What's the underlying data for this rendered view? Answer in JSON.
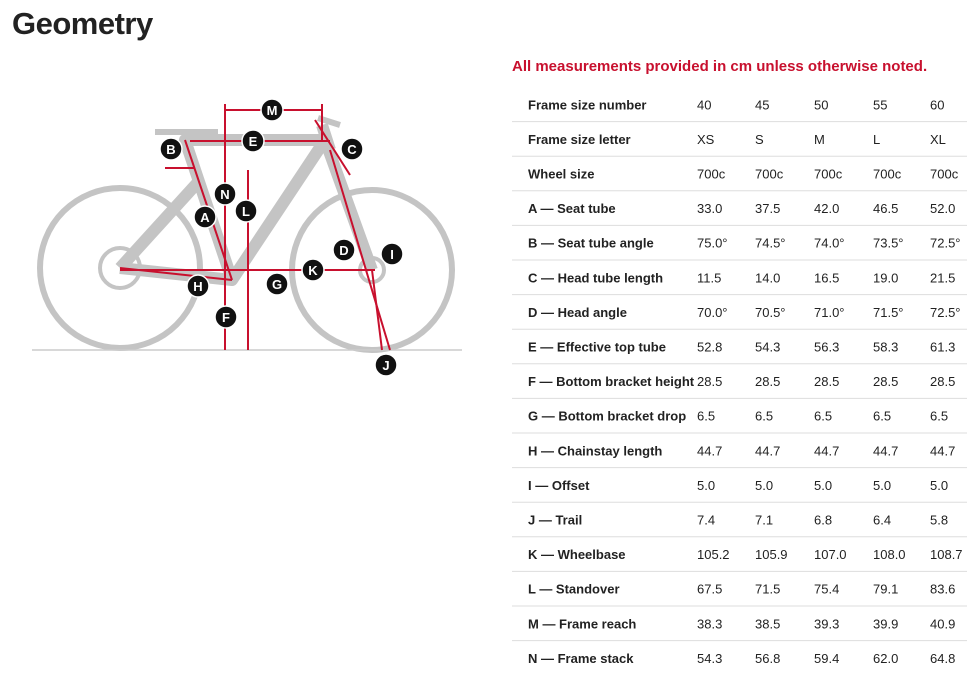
{
  "header": {
    "title": "Geometry",
    "note": "All measurements provided in cm unless otherwise noted."
  },
  "diagram": {
    "labels": [
      "M",
      "E",
      "B",
      "C",
      "N",
      "A",
      "L",
      "D",
      "I",
      "K",
      "H",
      "G",
      "F",
      "J"
    ]
  },
  "table": {
    "rows": [
      [
        "Frame size number",
        "40",
        "45",
        "50",
        "55",
        "60"
      ],
      [
        "Frame size letter",
        "XS",
        "S",
        "M",
        "L",
        "XL"
      ],
      [
        "Wheel size",
        "700c",
        "700c",
        "700c",
        "700c",
        "700c"
      ],
      [
        "A — Seat tube",
        "33.0",
        "37.5",
        "42.0",
        "46.5",
        "52.0"
      ],
      [
        "B — Seat tube angle",
        "75.0°",
        "74.5°",
        "74.0°",
        "73.5°",
        "72.5°"
      ],
      [
        "C — Head tube length",
        "11.5",
        "14.0",
        "16.5",
        "19.0",
        "21.5"
      ],
      [
        "D — Head angle",
        "70.0°",
        "70.5°",
        "71.0°",
        "71.5°",
        "72.5°"
      ],
      [
        "E — Effective top tube",
        "52.8",
        "54.3",
        "56.3",
        "58.3",
        "61.3"
      ],
      [
        "F — Bottom bracket height",
        "28.5",
        "28.5",
        "28.5",
        "28.5",
        "28.5"
      ],
      [
        "G — Bottom bracket drop",
        "6.5",
        "6.5",
        "6.5",
        "6.5",
        "6.5"
      ],
      [
        "H — Chainstay length",
        "44.7",
        "44.7",
        "44.7",
        "44.7",
        "44.7"
      ],
      [
        "I — Offset",
        "5.0",
        "5.0",
        "5.0",
        "5.0",
        "5.0"
      ],
      [
        "J — Trail",
        "7.4",
        "7.1",
        "6.8",
        "6.4",
        "5.8"
      ],
      [
        "K — Wheelbase",
        "105.2",
        "105.9",
        "107.0",
        "108.0",
        "108.7"
      ],
      [
        "L — Standover",
        "67.5",
        "71.5",
        "75.4",
        "79.1",
        "83.6"
      ],
      [
        "M — Frame reach",
        "38.3",
        "38.5",
        "39.3",
        "39.9",
        "40.9"
      ],
      [
        "N — Frame stack",
        "54.3",
        "56.8",
        "59.4",
        "62.0",
        "64.8"
      ]
    ]
  }
}
